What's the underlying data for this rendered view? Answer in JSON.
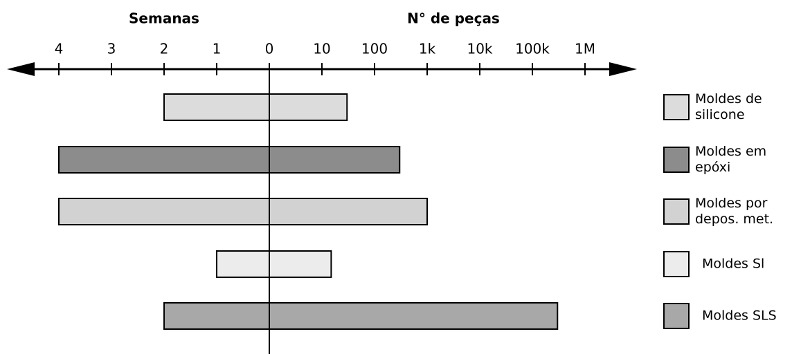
{
  "chart_data": {
    "type": "diverging_bar",
    "categories": [
      "Moldes de\nsilicone",
      "Moldes em\nepóxi",
      "Moldes por\ndepos. met.",
      "Moldes Sl",
      "Moldes SLS"
    ],
    "colors": [
      "#dcdcdc",
      "#8c8c8c",
      "#d2d2d2",
      "#ececec",
      "#a8a8a8"
    ],
    "series": [
      {
        "name": "Semanas",
        "side": "left",
        "values": [
          2,
          4,
          4,
          1,
          2
        ],
        "xlim": [
          0,
          5
        ],
        "xticks": [
          4,
          3,
          2,
          1,
          0
        ]
      },
      {
        "name": "N° de peças",
        "side": "right",
        "log": true,
        "values": [
          30,
          300,
          1000,
          15,
          300000
        ],
        "xlim": [
          1,
          10000000
        ],
        "xticks": [
          10,
          100,
          {
            "value": 1000,
            "label": "1k"
          },
          {
            "value": 10000,
            "label": "10k"
          },
          {
            "value": 100000,
            "label": "100k"
          },
          {
            "value": 1000000,
            "label": "1M"
          }
        ]
      }
    ]
  }
}
